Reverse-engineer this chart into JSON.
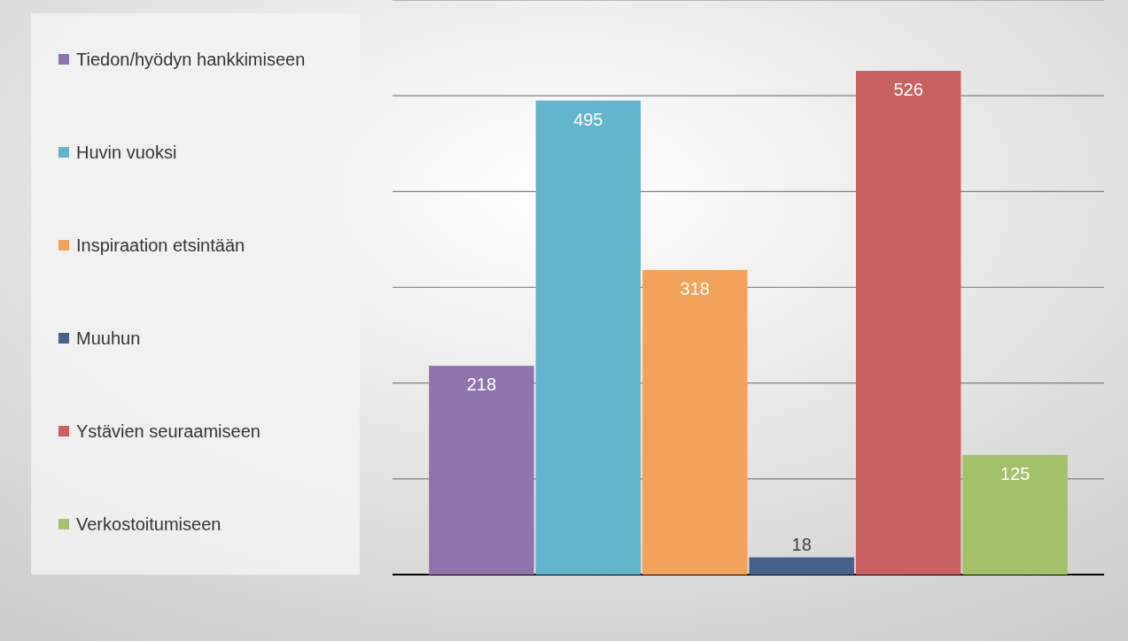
{
  "chart_data": {
    "type": "bar",
    "categories": [
      null
    ],
    "series": [
      {
        "name": "Tiedon/hyödyn hankkimiseen",
        "color": "#8e74ab",
        "values": [
          218
        ]
      },
      {
        "name": "Huvin vuoksi",
        "color": "#62b4cc",
        "values": [
          495
        ]
      },
      {
        "name": "Inspiraation etsintään",
        "color": "#f3a25b",
        "values": [
          318
        ]
      },
      {
        "name": "Muuhun",
        "color": "#46618a",
        "values": [
          18
        ]
      },
      {
        "name": "Ystävien seuraamiseen",
        "color": "#c8615f",
        "values": [
          526
        ]
      },
      {
        "name": "Verkostoitumiseen",
        "color": "#a3c06a",
        "values": [
          125
        ]
      }
    ],
    "ylim": [
      0,
      600
    ],
    "yticks": [
      {
        "value": 0,
        "label": null
      },
      {
        "value": 100,
        "label": null
      },
      {
        "value": 200,
        "label": null
      },
      {
        "value": 300,
        "label": null
      },
      {
        "value": 400,
        "label": null
      },
      {
        "value": 500,
        "label": null
      },
      {
        "value": 600,
        "label": null
      }
    ],
    "grid": "y",
    "legend": "left",
    "data_labels": true
  }
}
